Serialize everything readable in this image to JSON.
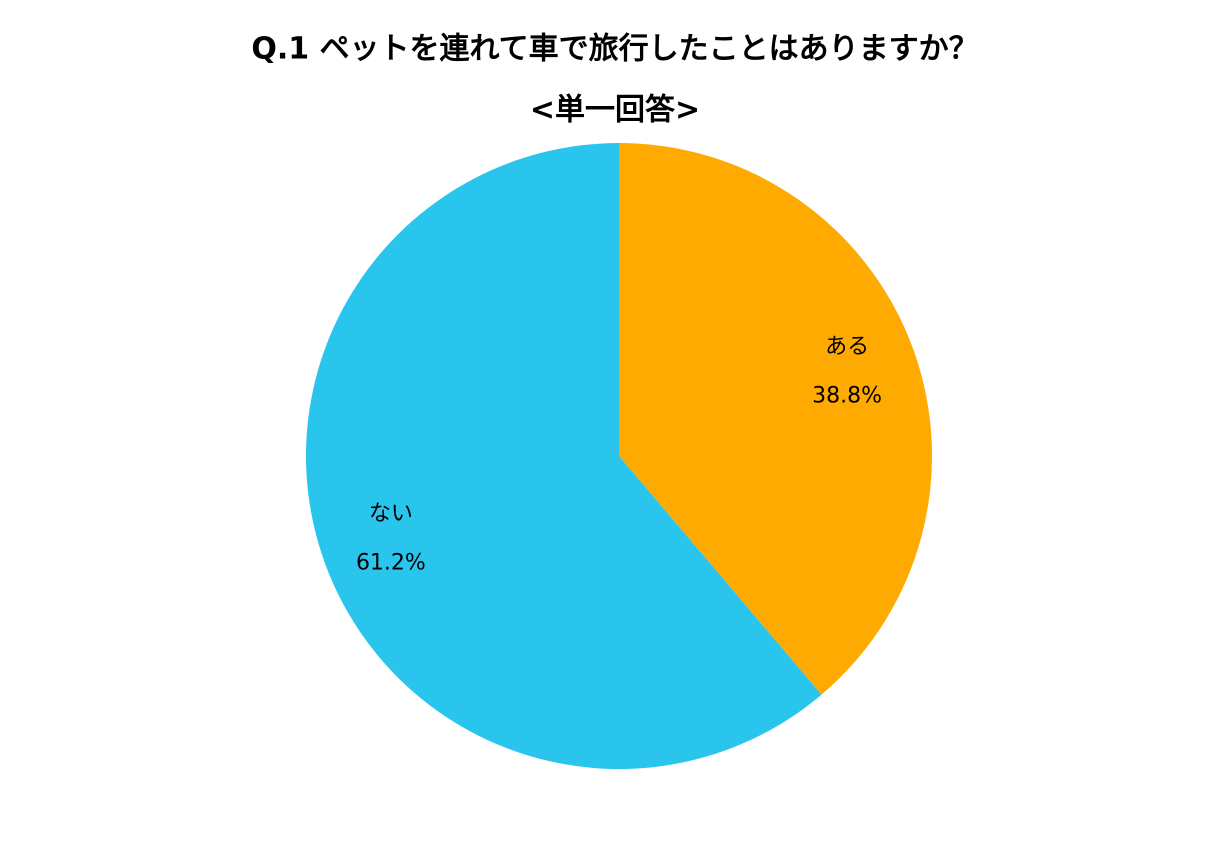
{
  "chart_data": {
    "type": "pie",
    "title": "Q.1 ペットを連れて車で旅行したことはありますか？",
    "subtitle": "<単一回答>",
    "categories": [
      "ある",
      "ない"
    ],
    "values": [
      38.8,
      61.2
    ],
    "value_labels": [
      "38.8%",
      "61.2%"
    ],
    "colors": [
      "#FFAA00",
      "#29C5EC"
    ]
  }
}
